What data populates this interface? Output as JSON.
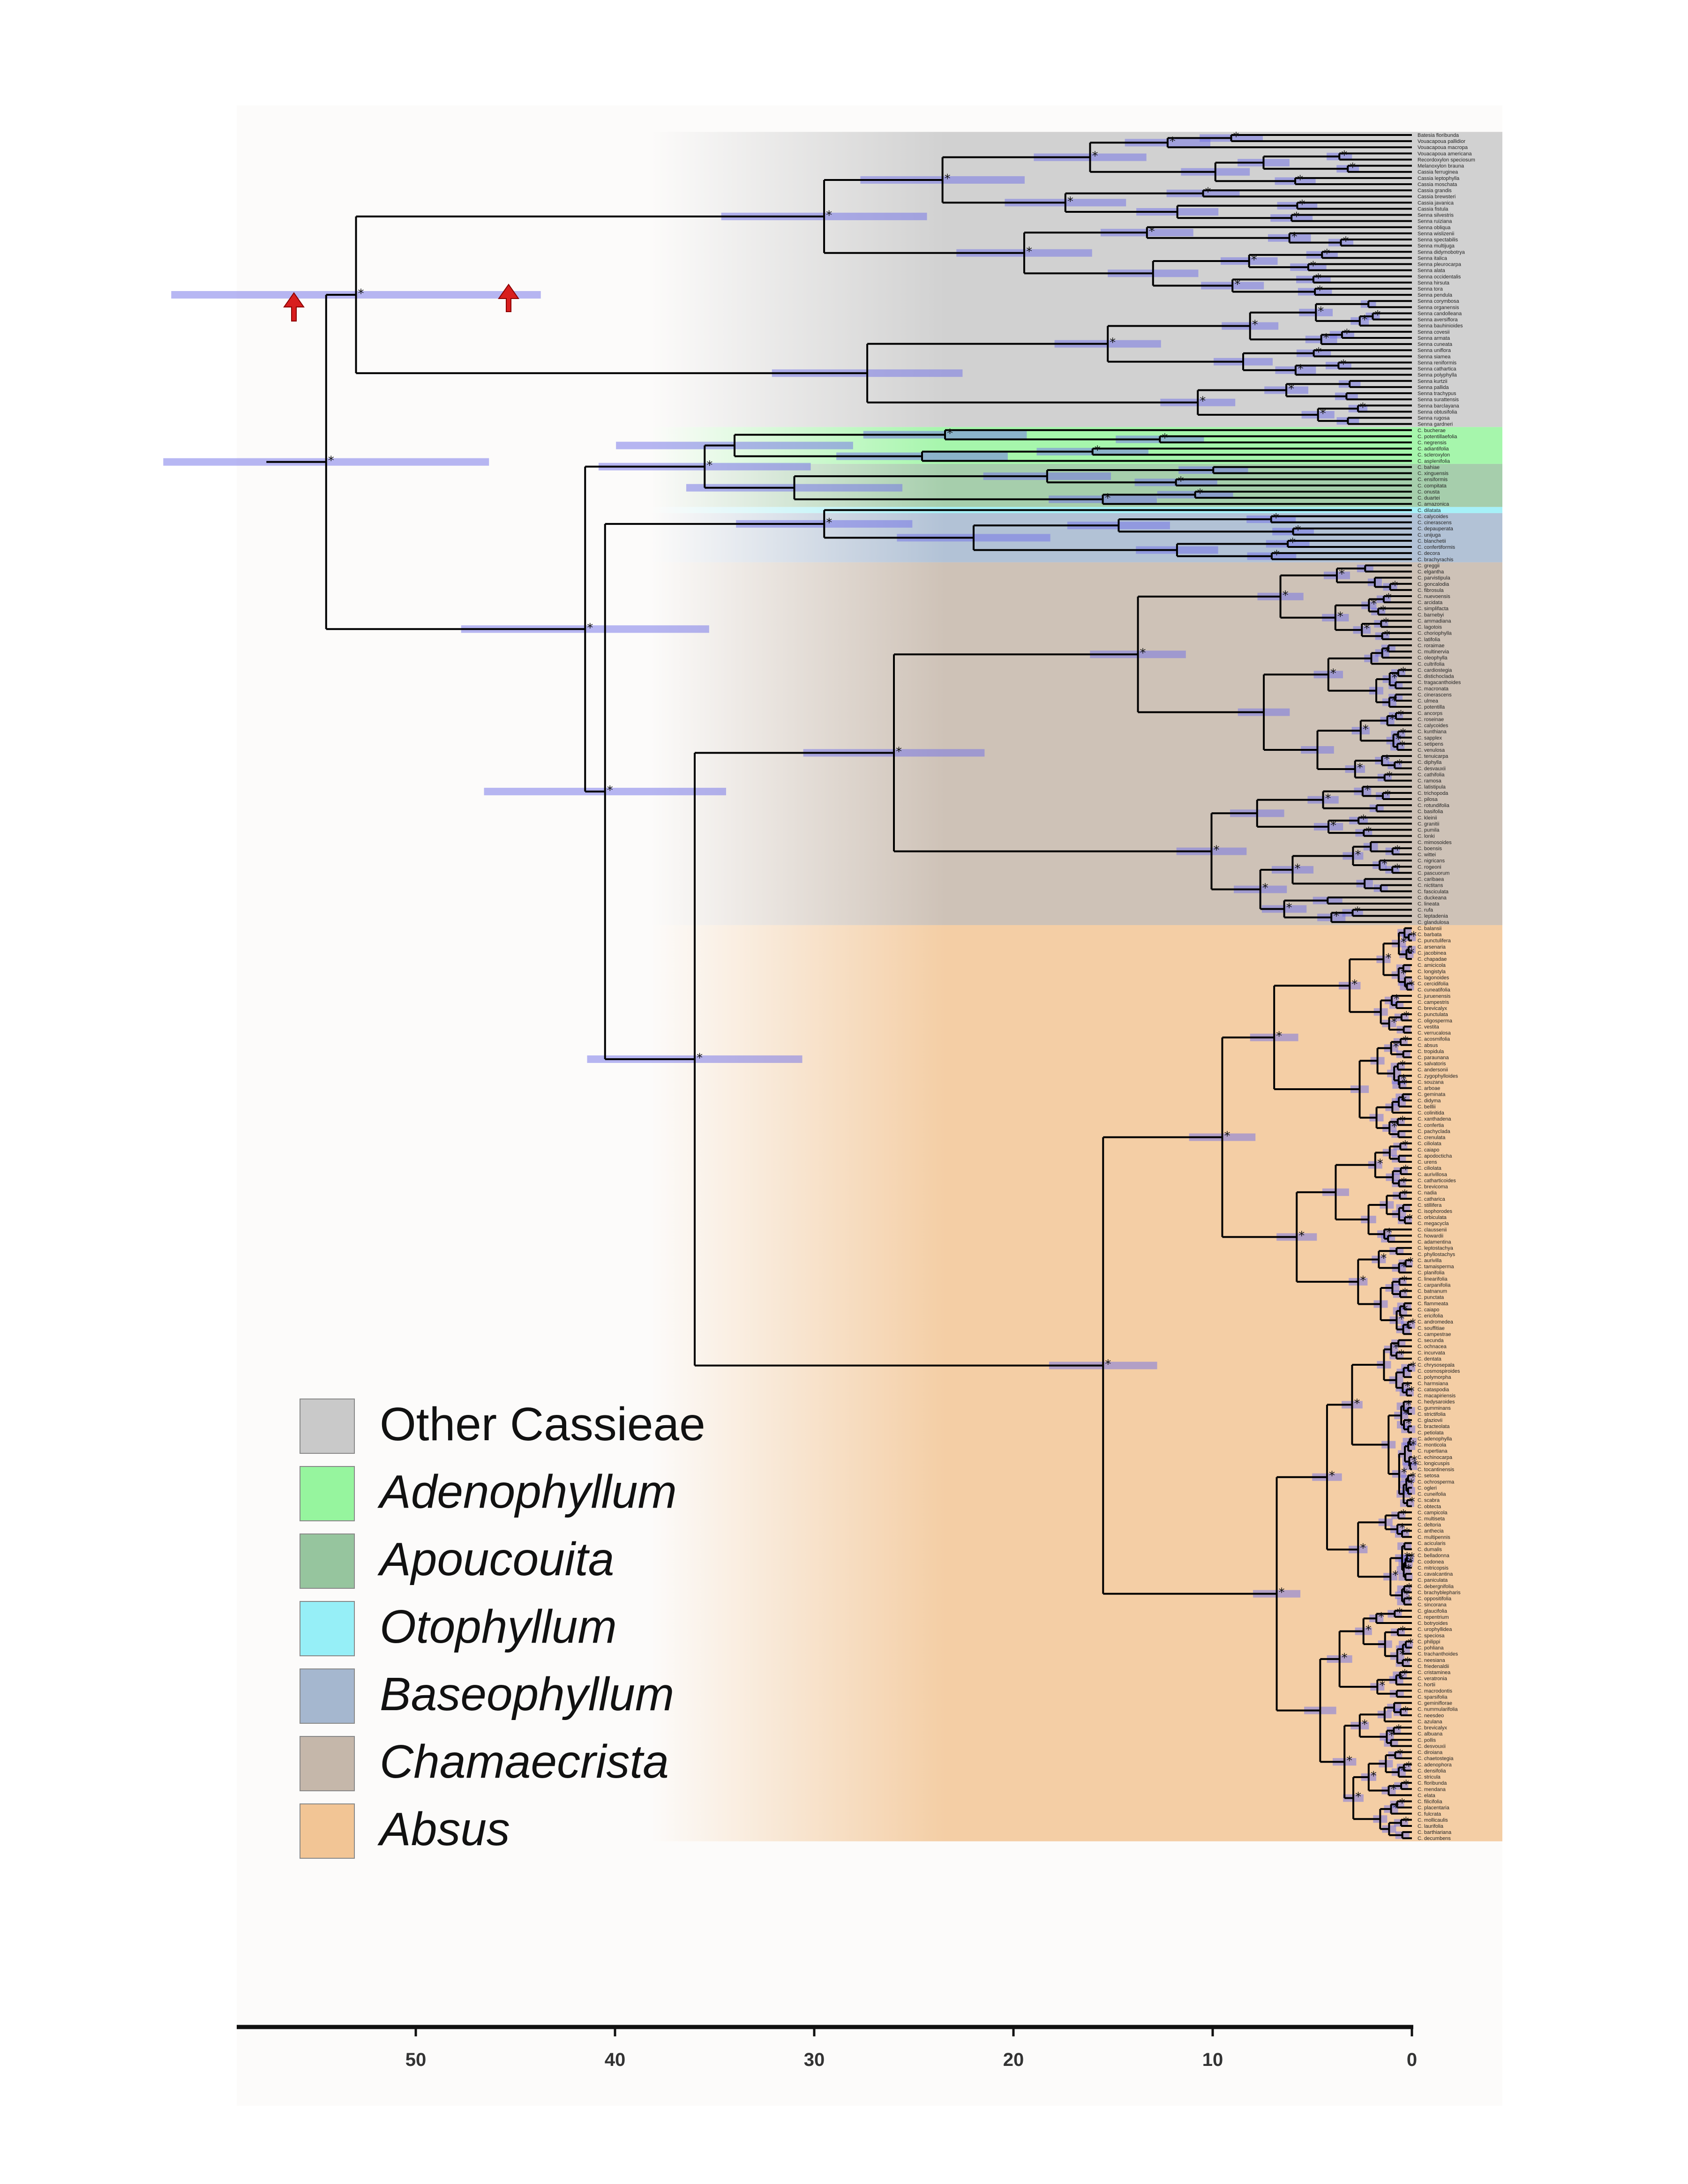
{
  "figure": {
    "background_color": "#fcfbfa",
    "branch_color": "#000000",
    "hpd_bar_color": "#6f6fe8",
    "arrow_color": "#d81e1e"
  },
  "axis": {
    "ticks": [
      "50",
      "40",
      "30",
      "20",
      "10",
      "0"
    ],
    "direction": "reversed",
    "range": [
      60,
      0
    ]
  },
  "clades": [
    {
      "name": "Other Cassieae",
      "color": "#c9c9c9",
      "italic": false
    },
    {
      "name": "Adenophyllum",
      "color": "#96f59e",
      "italic": true
    },
    {
      "name": "Apoucouita",
      "color": "#96c59e",
      "italic": true
    },
    {
      "name": "Otophyllum",
      "color": "#96eff7",
      "italic": true
    },
    {
      "name": "Baseophyllum",
      "color": "#a5b7cf",
      "italic": true
    },
    {
      "name": "Chamaecrista",
      "color": "#c5b7aa",
      "italic": true
    },
    {
      "name": "Absus",
      "color": "#f2c595",
      "italic": true
    }
  ],
  "support_marker": "*",
  "markers": {
    "arrow_icon": "arrow-up-icon",
    "count": 2
  },
  "tip_labels": {
    "other_cassieae": [
      "Batesia floribunda",
      "Vouacapoua pallidior",
      "Vouacapoua macropa",
      "Vouacapoua americana",
      "Recordoxylon speciosum",
      "Melanoxylon brauna",
      "Cassia ferruginea",
      "Cassia leptophylla",
      "Cassia moschata",
      "Cassia grandis",
      "Cassia brewsteri",
      "Cassia javanica",
      "Cassia fistula",
      "Senna silvestris",
      "Senna ruiziana",
      "Senna obliqua",
      "Senna wislizenii",
      "Senna spectabilis",
      "Senna multijuga",
      "Senna didymobotrya",
      "Senna italica",
      "Senna pleurocarpa",
      "Senna alata",
      "Senna occidentalis",
      "Senna hirsuta",
      "Senna tora",
      "Senna pendula",
      "Senna corymbosa",
      "Senna organensis",
      "Senna candolleana",
      "Senna aversiflora",
      "Senna bauhinioides",
      "Senna covesii",
      "Senna armata",
      "Senna cuneata",
      "Senna uniflora",
      "Senna siamea",
      "Senna reniformis",
      "Senna cathartica",
      "Senna polyphylla",
      "Senna kurtzii",
      "Senna pallida",
      "Senna trachypus",
      "Senna surattensis",
      "Senna barclayana",
      "Senna obtusifolia",
      "Senna rugosa",
      "Senna gardneri"
    ],
    "adenophyllum": [
      "C. bucherae",
      "C. potentillaefolia",
      "C. negrensis",
      "C. adiantifolia",
      "C. scleroxylon",
      "C. asplenifolia"
    ],
    "apoucouita": [
      "C. bahiae",
      "C. xinguensis",
      "C. ensiformis",
      "C. compitata",
      "C. onusta",
      "C. duartei",
      "C. amazonica"
    ],
    "otophyllum": [
      "C. dilatata"
    ],
    "baseophyllum": [
      "C. calycoides",
      "C. cinerascens",
      "C. depauperata",
      "C. unijuga",
      "C. blanchetii",
      "C. confertiformis",
      "C. decora",
      "C. brachyrachis"
    ],
    "chamaecrista": [
      "C. greggii",
      "C. elgantha",
      "C. parvistipula",
      "C. goncalodia",
      "C. fibrosula",
      "C. nuevoensis",
      "C. arcidata",
      "C. simplifacta",
      "C. barnebyi",
      "C. ammadiana",
      "C. lagotois",
      "C. choriophylla",
      "C. latifolia",
      "C. roraimae",
      "C. multinervia",
      "C. oleophylla",
      "C. cultrifolia",
      "C. cardiostegia",
      "C. distichoclada",
      "C. tragacanthoides",
      "C. macronata",
      "C. cinerascens",
      "C. ulmea",
      "C. potentilla",
      "C. ancorps",
      "C. roseinae",
      "C. calycoides",
      "C. kunthiana",
      "C. sapplex",
      "C. setipens",
      "C. venulosa",
      "C. tenuicarpa",
      "C. diphylla",
      "C. desvauxii",
      "C. cathifolia",
      "C. ramosa",
      "C. latistipula",
      "C. trichopoda",
      "C. pilosa",
      "C. rotundifolia",
      "C. basifolia",
      "C. kleinii",
      "C. granitii",
      "C. pumila",
      "C. lonki",
      "C. mimosoides",
      "C. boensis",
      "C. wittei",
      "C. nigricans",
      "C. rogeoni",
      "C. pascuorum",
      "C. caribaea",
      "C. nictitans",
      "C. fasciculata",
      "C. duckeana",
      "C. lineata",
      "C. rufa",
      "C. leptadenia",
      "C. glandulosa"
    ],
    "absus": [
      "C. balansii",
      "C. barbata",
      "C. punctulifera",
      "C. arsenaria",
      "C. jacobinea",
      "C. chapadae",
      "C. amicicola",
      "C. longistyla",
      "C. lagonoides",
      "C. cercidifolia",
      "C. cuneatifolia",
      "C. juruenensis",
      "C. campestris",
      "C. brevicalyx",
      "C. punctulata",
      "C. oligosperma",
      "C. vestita",
      "C. verrucalosa",
      "C. acosmifolia",
      "C. absus",
      "C. tropidula",
      "C. paraunana",
      "C. salvatoris",
      "C. andersonii",
      "C. zygophylloides",
      "C. souzana",
      "C. arboae",
      "C. geminata",
      "C. didyma",
      "C. belllii",
      "C. colinitida",
      "C. xanthadena",
      "C. confertia",
      "C. pachyclada",
      "C. crenulata",
      "C. ciliolata",
      "C. caiapo",
      "C. apodocticha",
      "C. urens",
      "C. ciliolata",
      "C. aurivillosa",
      "C. catharticoides",
      "C. brevicoma",
      "C. nadia",
      "C. catharica",
      "C. stillifera",
      "C. isophorodes",
      "C. orbiculata",
      "C. megacycla",
      "C. claussenii",
      "C. howardii",
      "C. adamentina",
      "C. leptostachya",
      "C. phyllostachys",
      "C. aurivilla",
      "C. tamaisperma",
      "C. planifolia",
      "C. linearifolia",
      "C. carpanifolia",
      "C. batnanum",
      "C. punctata",
      "C. flammeata",
      "C. caiapo",
      "C. ericifolia",
      "C. andromedea",
      "C. souffitiae",
      "C. campestrae",
      "C. secunda",
      "C. ochnacea",
      "C. incurvata",
      "C. dentata",
      "C. chrysosepala",
      "C. cosmospiroides",
      "C. polymorpha",
      "C. harmsiana",
      "C. cataspodia",
      "C. macapiriensis",
      "C. hedysaroides",
      "C. gumminans",
      "C. strictifolia",
      "C. glaziovii",
      "C. bracteolata",
      "C. petiolata",
      "C. adenophylla",
      "C. monticola",
      "C. rupertiana",
      "C. echinocarpa",
      "C. longicuspis",
      "C. tocantinensis",
      "C. setosa",
      "C. ochrosperma",
      "C. ogleri",
      "C. cuneifolia",
      "C. scabra",
      "C. obtecta",
      "C. campicola",
      "C. multiseta",
      "C. deltoria",
      "C. anthecia",
      "C. multipennis",
      "C. acicularis",
      "C. dumalis",
      "C. belladonna",
      "C. codonea",
      "C. mitricopsis",
      "C. cavalcantina",
      "C. paniculata",
      "C. debergnifolia",
      "C. brachyblepharis",
      "C. oppositifolia",
      "C. sincorana",
      "C. glaucifolia",
      "C. repentrium",
      "C. botryoides",
      "C. urophyllidea",
      "C. speciosa",
      "C. philippi",
      "C. pohliana",
      "C. trachanthoides",
      "C. neesiana",
      "C. friedenaldii",
      "C. cristaminea",
      "C. veratronia",
      "C. hortii",
      "C. macrodontis",
      "C. sparsifolia",
      "C. geminiflorae",
      "C. nummularifolia",
      "C. neesdeo",
      "C. azulana",
      "C. brevicalyx",
      "C. albuana",
      "C. pollis",
      "C. desvouxii",
      "C. diroiana",
      "C. chaetostegia",
      "C. adenophora",
      "C. densifolia",
      "C. stricula",
      "C. floribunda",
      "C. mendana",
      "C. elata",
      "C. filicifolia",
      "C. placentaria",
      "C. fulcrata",
      "C. mollicaulis",
      "C. laurifolia",
      "C. barthiariana",
      "C. decumbens"
    ]
  }
}
